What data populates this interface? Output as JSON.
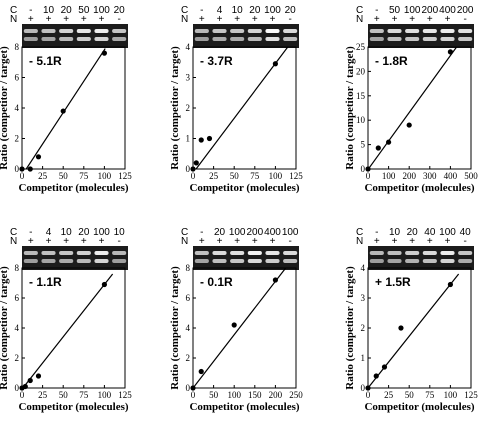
{
  "figure": {
    "ylabel": "Ratio (competitor / target)",
    "xlabel": "Competitor (molecules)"
  },
  "chart_data": [
    {
      "type": "scatter",
      "annotation": "- 5.1R",
      "gel": {
        "row_c_label": "C",
        "row_n_label": "N",
        "c_lanes": [
          "-",
          "10",
          "20",
          "50",
          "100",
          "20"
        ],
        "n_lanes": [
          "+",
          "+",
          "+",
          "+",
          "+",
          "-"
        ]
      },
      "xlim": [
        0,
        125
      ],
      "ylim": [
        0,
        8
      ],
      "xticks": [
        "0",
        "25",
        "50",
        "75",
        "100",
        "125"
      ],
      "yticks": [
        "0",
        "2",
        "4",
        "6",
        "8"
      ],
      "points": [
        [
          0,
          0
        ],
        [
          10,
          0
        ],
        [
          20,
          0.8
        ],
        [
          50,
          3.8
        ],
        [
          100,
          7.6
        ]
      ],
      "fit": [
        [
          5.1,
          0
        ],
        [
          101,
          7.9
        ]
      ]
    },
    {
      "type": "scatter",
      "annotation": "- 3.7R",
      "gel": {
        "row_c_label": "C",
        "row_n_label": "N",
        "c_lanes": [
          "-",
          "4",
          "10",
          "20",
          "100",
          "20"
        ],
        "n_lanes": [
          "+",
          "+",
          "+",
          "+",
          "+",
          "-"
        ]
      },
      "xlim": [
        0,
        125
      ],
      "ylim": [
        0,
        4
      ],
      "xticks": [
        "0",
        "25",
        "50",
        "75",
        "100",
        "125"
      ],
      "yticks": [
        "0",
        "1",
        "2",
        "3",
        "4"
      ],
      "points": [
        [
          0,
          0
        ],
        [
          4,
          0.2
        ],
        [
          10,
          0.95
        ],
        [
          20,
          1.0
        ],
        [
          100,
          3.45
        ]
      ],
      "fit": [
        [
          3.7,
          0
        ],
        [
          115,
          4.0
        ]
      ]
    },
    {
      "type": "scatter",
      "annotation": "- 1.8R",
      "gel": {
        "row_c_label": "C",
        "row_n_label": "N",
        "c_lanes": [
          "-",
          "50",
          "100",
          "200",
          "400",
          "200"
        ],
        "n_lanes": [
          "+",
          "+",
          "+",
          "+",
          "+",
          "-"
        ]
      },
      "xlim": [
        0,
        500
      ],
      "ylim": [
        0,
        25
      ],
      "xticks": [
        "0",
        "100",
        "200",
        "300",
        "400",
        "500"
      ],
      "yticks": [
        "0",
        "5",
        "10",
        "15",
        "20",
        "25"
      ],
      "points": [
        [
          0,
          0
        ],
        [
          50,
          4.3
        ],
        [
          100,
          5.5
        ],
        [
          200,
          9
        ],
        [
          400,
          24
        ]
      ],
      "fit": [
        [
          1.8,
          0
        ],
        [
          430,
          25
        ]
      ]
    },
    {
      "type": "scatter",
      "annotation": "- 1.1R",
      "gel": {
        "row_c_label": "C",
        "row_n_label": "N",
        "c_lanes": [
          "-",
          "4",
          "10",
          "20",
          "100",
          "10"
        ],
        "n_lanes": [
          "+",
          "+",
          "+",
          "+",
          "+",
          "-"
        ]
      },
      "xlim": [
        0,
        125
      ],
      "ylim": [
        0,
        8
      ],
      "xticks": [
        "0",
        "25",
        "50",
        "75",
        "100",
        "125"
      ],
      "yticks": [
        "0",
        "2",
        "4",
        "6",
        "8"
      ],
      "points": [
        [
          0,
          0
        ],
        [
          4,
          0.1
        ],
        [
          10,
          0.5
        ],
        [
          20,
          0.8
        ],
        [
          100,
          6.9
        ]
      ],
      "fit": [
        [
          1.1,
          0
        ],
        [
          110,
          7.6
        ]
      ]
    },
    {
      "type": "scatter",
      "annotation": "- 0.1R",
      "gel": {
        "row_c_label": "C",
        "row_n_label": "N",
        "c_lanes": [
          "-",
          "20",
          "100",
          "200",
          "400",
          "100"
        ],
        "n_lanes": [
          "+",
          "+",
          "+",
          "+",
          "+",
          "-"
        ]
      },
      "xlim": [
        0,
        250
      ],
      "ylim": [
        0,
        8
      ],
      "xticks": [
        "0",
        "50",
        "100",
        "150",
        "200",
        "250"
      ],
      "yticks": [
        "0",
        "2",
        "4",
        "6",
        "8"
      ],
      "points": [
        [
          0,
          0
        ],
        [
          20,
          1.1
        ],
        [
          100,
          4.2
        ],
        [
          200,
          7.2
        ]
      ],
      "fit": [
        [
          0.1,
          0
        ],
        [
          225,
          8
        ]
      ]
    },
    {
      "type": "scatter",
      "annotation": "+ 1.5R",
      "gel": {
        "row_c_label": "C",
        "row_n_label": "N",
        "c_lanes": [
          "-",
          "10",
          "20",
          "40",
          "100",
          "40"
        ],
        "n_lanes": [
          "+",
          "+",
          "+",
          "+",
          "+",
          "-"
        ]
      },
      "xlim": [
        0,
        125
      ],
      "ylim": [
        0,
        4
      ],
      "xticks": [
        "0",
        "25",
        "50",
        "75",
        "100",
        "125"
      ],
      "yticks": [
        "0",
        "1",
        "2",
        "3",
        "4"
      ],
      "points": [
        [
          0,
          0
        ],
        [
          10,
          0.4
        ],
        [
          20,
          0.7
        ],
        [
          40,
          2.0
        ],
        [
          100,
          3.45
        ]
      ],
      "fit": [
        [
          0,
          0
        ],
        [
          110,
          3.8
        ]
      ]
    }
  ]
}
